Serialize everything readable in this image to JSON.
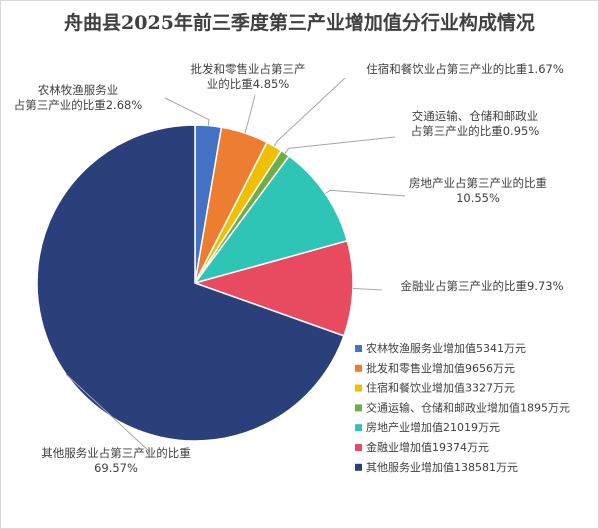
{
  "chart_data": {
    "type": "pie",
    "title": "舟曲县2025年前三季度第三产业增加值分行业构成情况",
    "slices": [
      {
        "legend": "农林牧渔服务业增加值5341万元",
        "label_lines": [
          "农林牧渔服务业",
          "占第三产业的比重2.68%"
        ],
        "percent": 2.68,
        "value": 5341,
        "color": "#4472C4"
      },
      {
        "legend": "批发和零售业增加值9656万元",
        "label_lines": [
          "批发和零售业占第三产",
          "业的比重4.85%"
        ],
        "percent": 4.85,
        "value": 9656,
        "color": "#ED7D31"
      },
      {
        "legend": "住宿和餐饮业增加值3327万元",
        "label_lines": [
          "住宿和餐饮业占第三产业的比重1.67%"
        ],
        "percent": 1.67,
        "value": 3327,
        "color": "#F0C000"
      },
      {
        "legend": "交通运输、仓储和邮政业增加值1895万元",
        "label_lines": [
          "交通运输、仓储和邮政业",
          "占第三产业的比重0.95%"
        ],
        "percent": 0.95,
        "value": 1895,
        "color": "#70AD47"
      },
      {
        "legend": "房地产业增加值21019万元",
        "label_lines": [
          "房地产业占第三产业的比重",
          "10.55%"
        ],
        "percent": 10.55,
        "value": 21019,
        "color": "#2EC4B6"
      },
      {
        "legend": "金融业增加值19374万元",
        "label_lines": [
          "金融业占第三产业的比重9.73%"
        ],
        "percent": 9.73,
        "value": 19374,
        "color": "#E84A5F"
      },
      {
        "legend": "其他服务业增加值138581万元",
        "label_lines": [
          "其他服务业占第三产业的比重",
          "69.57%"
        ],
        "percent": 69.57,
        "value": 138581,
        "color": "#2B3F7A"
      }
    ],
    "legend_placement": "bottom-right",
    "start_angle": "12 o'clock, clockwise"
  }
}
